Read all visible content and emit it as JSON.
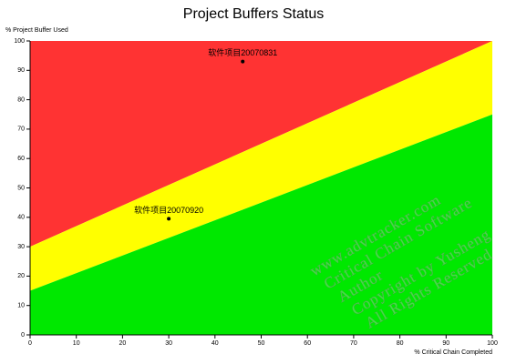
{
  "chart_data": {
    "type": "fever",
    "title": "Project Buffers Status",
    "ylabel": "% Project Buffer Used",
    "xlabel": "% Critical Chain Completed",
    "xlim": [
      0,
      100
    ],
    "ylim": [
      0,
      100
    ],
    "xticks": [
      0,
      10,
      20,
      30,
      40,
      50,
      60,
      70,
      80,
      90,
      100
    ],
    "yticks": [
      0,
      10,
      20,
      30,
      40,
      50,
      60,
      70,
      80,
      90,
      100
    ],
    "boundaries": [
      {
        "start": 30,
        "end": 100
      },
      {
        "start": 15,
        "end": 75
      }
    ],
    "zone_colors": [
      "#ff3333",
      "#ffff00",
      "#00e800"
    ],
    "points": [
      {
        "label": "软件项目20070831",
        "x": 46,
        "y": 93
      },
      {
        "label": "软件项目20070920",
        "x": 30,
        "y": 39.5
      }
    ],
    "watermark": [
      "www.advtracker.com",
      "Critical Chain Software",
      "Author",
      "Copyright by Yusheng",
      "All Rights Reserved"
    ]
  }
}
